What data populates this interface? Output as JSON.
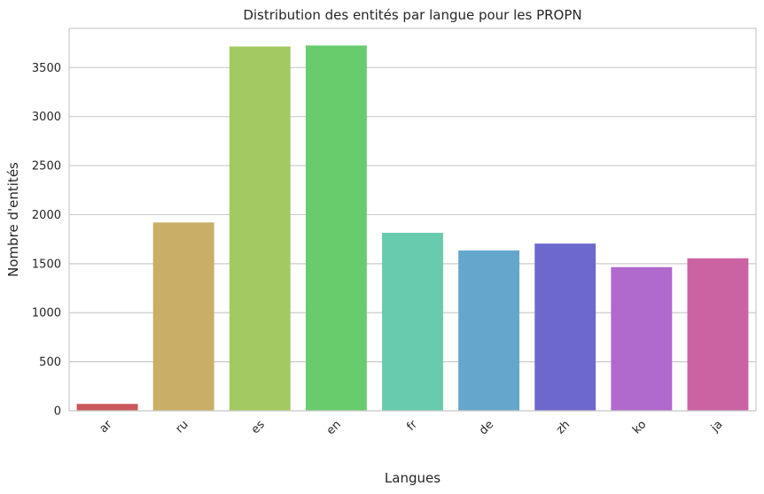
{
  "chart_data": {
    "type": "bar",
    "title": "Distribution des entités par langue pour les PROPN",
    "xlabel": "Langues",
    "ylabel": "Nombre d'entités",
    "categories": [
      "ar",
      "ru",
      "es",
      "en",
      "fr",
      "de",
      "zh",
      "ko",
      "ja"
    ],
    "values": [
      70,
      1920,
      3715,
      3725,
      1815,
      1635,
      1705,
      1465,
      1555
    ],
    "colors": [
      "#c8565a",
      "#c9ae65",
      "#a3c962",
      "#68cc6d",
      "#68cbae",
      "#65a6cc",
      "#6d69cc",
      "#b069cc",
      "#cb63a3"
    ],
    "ylim": [
      0,
      3900
    ],
    "yticks": [
      0,
      500,
      1000,
      1500,
      2000,
      2500,
      3000,
      3500
    ],
    "grid": true,
    "legend": "none"
  }
}
